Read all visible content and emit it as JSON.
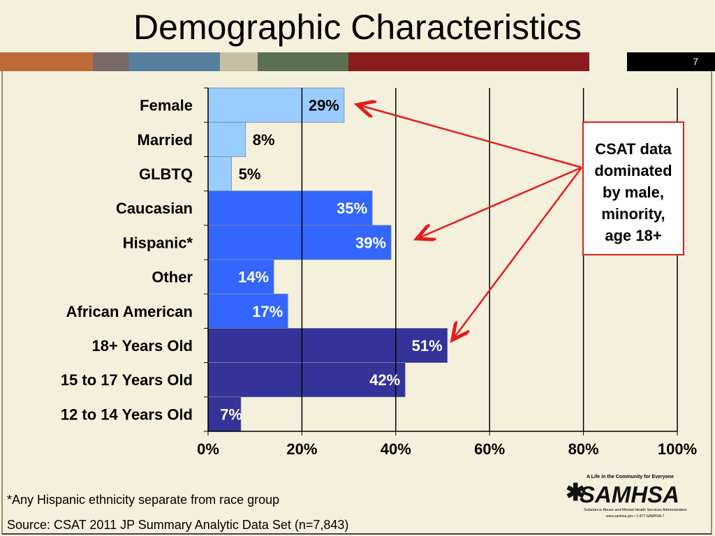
{
  "title": "Demographic Characteristics",
  "page_number": "7",
  "stripe_colors": [
    "#bf6b37",
    "#7b6a6a",
    "#557f9d",
    "#c8bea6",
    "#5b7050",
    "#8b1c1c",
    "#f5f0dc",
    "#000000"
  ],
  "callout_lines": [
    "CSAT data",
    "dominated",
    "by male,",
    "minority,",
    "age 18+"
  ],
  "footnote": "*Any Hispanic ethnicity separate from race group",
  "source": "Source: CSAT 2011 JP Summary Analytic Data Set (n=7,843)",
  "logo": {
    "tagline": "A Life in the Community for Everyone",
    "name": "SAMHSA",
    "subtitle": "Substance Abuse and Mental Health Services Administration",
    "contact": "www.samhsa.gov • 1-877-SAMHSA-7"
  },
  "colors": {
    "light": "#99ccff",
    "medium": "#3366ff",
    "dark": "#333399",
    "arrow": "#e21c1c"
  },
  "chart_data": {
    "type": "bar",
    "orientation": "horizontal",
    "categories": [
      "Female",
      "Married",
      "GLBTQ",
      "Caucasian",
      "Hispanic*",
      "Other",
      "African American",
      "18+ Years Old",
      "15 to 17 Years Old",
      "12 to 14 Years Old"
    ],
    "values": [
      29,
      8,
      5,
      35,
      39,
      14,
      17,
      51,
      42,
      7
    ],
    "labels": [
      "29%",
      "8%",
      "5%",
      "35%",
      "39%",
      "14%",
      "17%",
      "51%",
      "42%",
      "7%"
    ],
    "groups": [
      "light",
      "light",
      "light",
      "medium",
      "medium",
      "medium",
      "medium",
      "dark",
      "dark",
      "dark"
    ],
    "xticks": [
      "0%",
      "20%",
      "40%",
      "60%",
      "80%",
      "100%"
    ],
    "xlim": [
      0,
      100
    ],
    "grid": true,
    "legend": "none",
    "callout_arrows_to": [
      "Female",
      "Hispanic*",
      "18+ Years Old"
    ]
  }
}
